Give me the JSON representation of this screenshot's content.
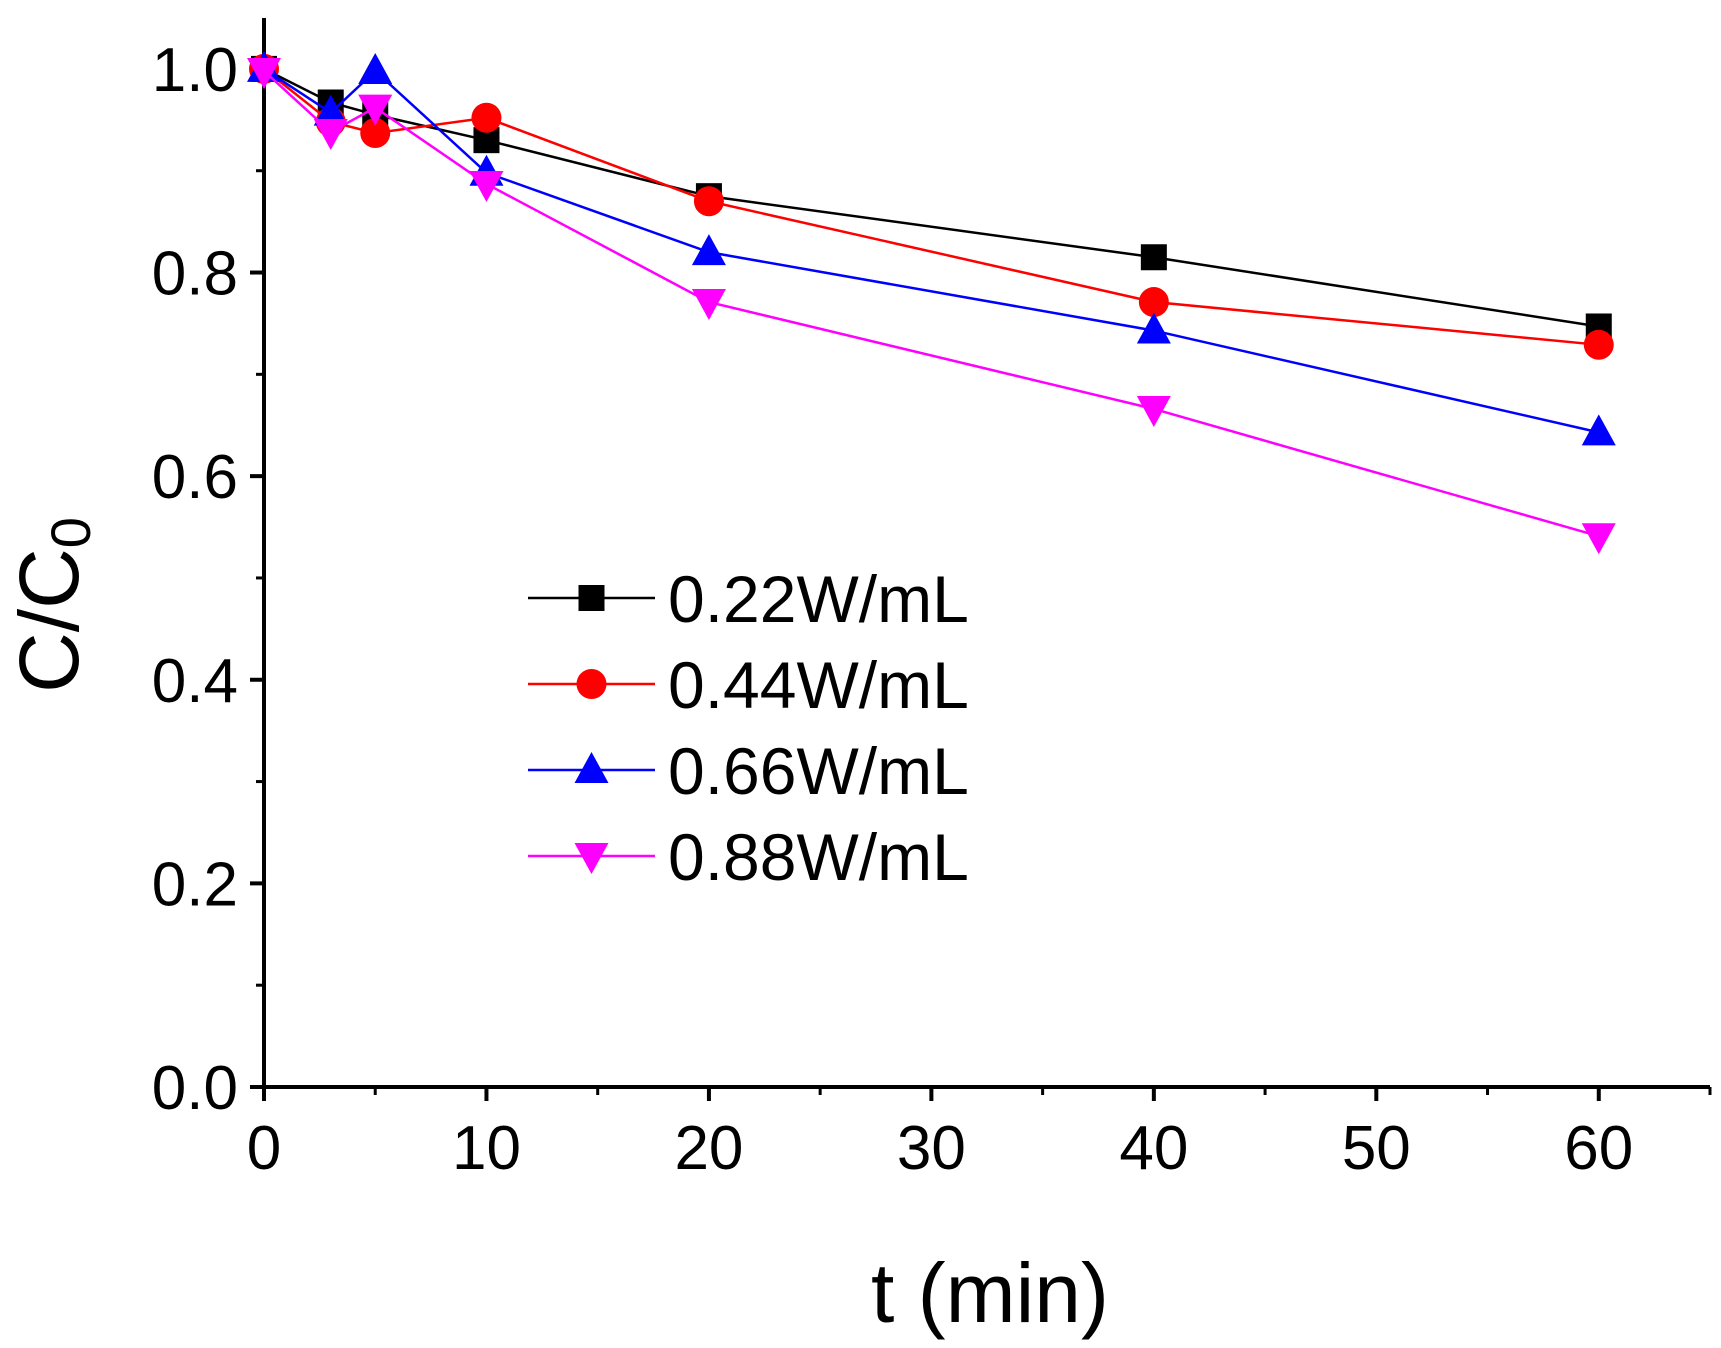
{
  "chart_data": {
    "type": "line",
    "title": "",
    "xlabel": "t (min)",
    "ylabel": {
      "main": "C/C",
      "subscript": "0"
    },
    "xlim": [
      0,
      65
    ],
    "ylim": [
      0,
      1.05
    ],
    "x_ticks": [
      0,
      10,
      20,
      30,
      40,
      50,
      60
    ],
    "x_tick_labels": [
      "0",
      "10",
      "20",
      "30",
      "40",
      "50",
      "60"
    ],
    "y_ticks": [
      0,
      0.2,
      0.4,
      0.6,
      0.8,
      1.0
    ],
    "y_tick_labels": [
      "0.0",
      "0.2",
      "0.4",
      "0.6",
      "0.8",
      "1.0"
    ],
    "grid": false,
    "legend_position": "center",
    "x": [
      0,
      3,
      5,
      10,
      20,
      40,
      60
    ],
    "series": [
      {
        "name": "0.22W/mL",
        "color": "#000000",
        "marker": "square",
        "values": [
          1.0,
          0.967,
          0.955,
          0.93,
          0.875,
          0.815,
          0.747
        ]
      },
      {
        "name": "0.44W/mL",
        "color": "#ff0000",
        "marker": "circle",
        "values": [
          1.0,
          0.948,
          0.937,
          0.952,
          0.87,
          0.771,
          0.729
        ]
      },
      {
        "name": "0.66W/mL",
        "color": "#0000ff",
        "marker": "triangle-up",
        "values": [
          1.0,
          0.957,
          0.998,
          0.898,
          0.82,
          0.743,
          0.643
        ]
      },
      {
        "name": "0.88W/mL",
        "color": "#ff00ff",
        "marker": "triangle-down",
        "values": [
          0.998,
          0.938,
          0.962,
          0.887,
          0.771,
          0.666,
          0.541
        ]
      }
    ]
  }
}
